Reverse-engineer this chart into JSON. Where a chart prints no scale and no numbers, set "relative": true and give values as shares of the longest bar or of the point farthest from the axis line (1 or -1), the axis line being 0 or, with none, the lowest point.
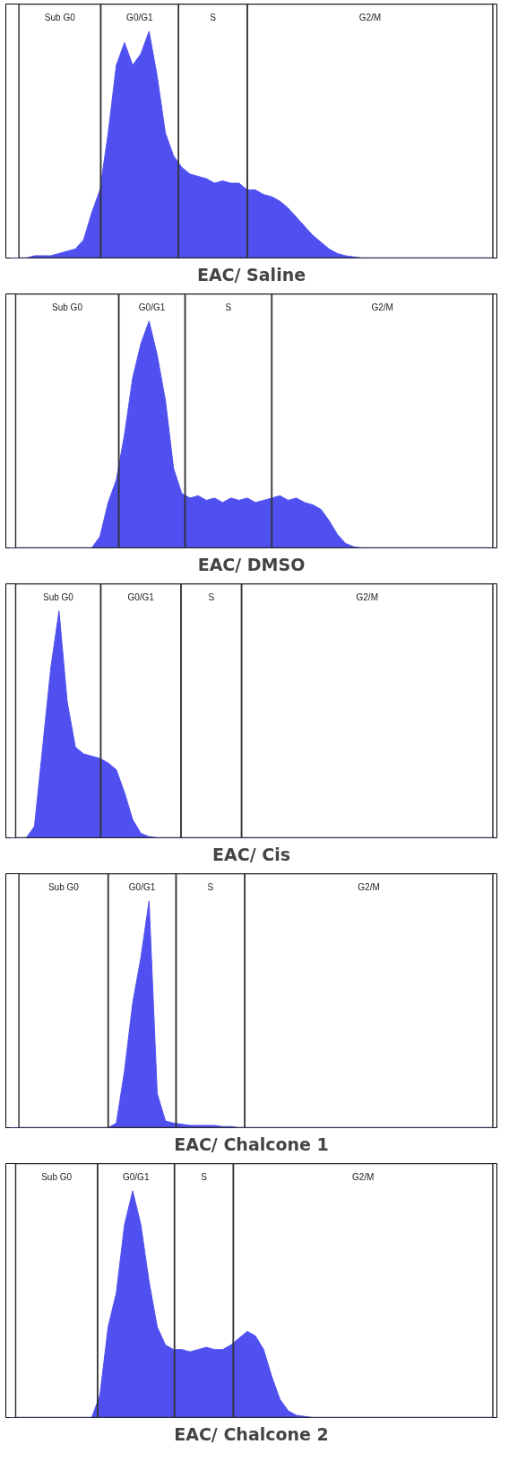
{
  "chart_data": [
    {
      "type": "area",
      "title": "EAC/ Saline",
      "relative": true,
      "tick_labels": false,
      "grid": false,
      "categories": [
        null,
        null,
        null,
        null,
        null,
        null,
        null,
        null,
        null,
        null,
        null,
        null,
        null,
        null,
        null,
        null,
        null,
        null,
        null,
        null,
        null,
        null,
        null,
        null,
        null,
        null,
        null,
        null,
        null,
        null,
        null,
        null,
        null,
        null,
        null,
        null,
        null,
        null,
        null,
        null,
        null,
        null,
        null,
        null,
        null,
        null,
        null,
        null,
        null,
        null,
        null,
        null,
        null,
        null,
        null,
        null,
        null,
        null,
        null,
        null
      ],
      "series": [
        {
          "color": "#5050f0",
          "values": [
            0,
            0,
            0,
            0.01,
            0.01,
            0.01,
            0.02,
            0.03,
            0.04,
            0.08,
            0.2,
            0.3,
            0.55,
            0.85,
            0.95,
            0.85,
            0.9,
            1,
            0.8,
            0.55,
            0.45,
            0.4,
            0.37,
            0.36,
            0.35,
            0.33,
            0.34,
            0.33,
            0.33,
            0.3,
            0.3,
            0.28,
            0.27,
            0.25,
            0.22,
            0.18,
            0.14,
            0.1,
            0.07,
            0.04,
            0.02,
            0.01,
            0.005,
            0,
            0,
            0,
            0,
            0,
            0,
            0,
            0,
            0,
            0,
            0,
            0,
            0,
            0,
            0,
            0,
            0
          ]
        }
      ],
      "annotations": [
        "Sub G0",
        "G0/G1",
        "S",
        "G2/M"
      ]
    },
    {
      "type": "area",
      "title": "EAC/ DMSO",
      "relative": true,
      "tick_labels": false,
      "grid": false,
      "categories": [
        null,
        null,
        null,
        null,
        null,
        null,
        null,
        null,
        null,
        null,
        null,
        null,
        null,
        null,
        null,
        null,
        null,
        null,
        null,
        null,
        null,
        null,
        null,
        null,
        null,
        null,
        null,
        null,
        null,
        null,
        null,
        null,
        null,
        null,
        null,
        null,
        null,
        null,
        null,
        null,
        null,
        null,
        null,
        null,
        null,
        null,
        null,
        null,
        null,
        null,
        null,
        null,
        null,
        null,
        null,
        null,
        null,
        null,
        null,
        null
      ],
      "series": [
        {
          "color": "#5050f0",
          "values": [
            0,
            0,
            0,
            0,
            0,
            0,
            0,
            0,
            0,
            0,
            0,
            0.05,
            0.2,
            0.3,
            0.5,
            0.75,
            0.9,
            1,
            0.85,
            0.65,
            0.35,
            0.24,
            0.22,
            0.23,
            0.21,
            0.22,
            0.2,
            0.22,
            0.21,
            0.22,
            0.2,
            0.21,
            0.22,
            0.23,
            0.21,
            0.22,
            0.2,
            0.19,
            0.17,
            0.12,
            0.06,
            0.02,
            0.005,
            0,
            0,
            0,
            0,
            0,
            0,
            0,
            0,
            0,
            0,
            0,
            0,
            0,
            0,
            0,
            0,
            0
          ]
        }
      ],
      "annotations": [
        "Sub G0",
        "G0/G1",
        "S",
        "G2/M"
      ]
    },
    {
      "type": "area",
      "title": "EAC/ Cis",
      "relative": true,
      "tick_labels": false,
      "grid": false,
      "categories": [
        null,
        null,
        null,
        null,
        null,
        null,
        null,
        null,
        null,
        null,
        null,
        null,
        null,
        null,
        null,
        null,
        null,
        null,
        null,
        null,
        null,
        null,
        null,
        null,
        null,
        null,
        null,
        null,
        null,
        null,
        null,
        null,
        null,
        null,
        null,
        null,
        null,
        null,
        null,
        null,
        null,
        null,
        null,
        null,
        null,
        null,
        null,
        null,
        null,
        null,
        null,
        null,
        null,
        null,
        null,
        null,
        null,
        null,
        null,
        null
      ],
      "series": [
        {
          "color": "#5050f0",
          "values": [
            0,
            0,
            0,
            0.05,
            0.4,
            0.75,
            1,
            0.6,
            0.4,
            0.37,
            0.36,
            0.35,
            0.33,
            0.3,
            0.2,
            0.08,
            0.02,
            0.005,
            0,
            0,
            0,
            0,
            0,
            0,
            0,
            0,
            0,
            0,
            0,
            0,
            0,
            0,
            0,
            0,
            0,
            0,
            0,
            0,
            0,
            0,
            0,
            0,
            0,
            0,
            0,
            0,
            0,
            0,
            0,
            0,
            0,
            0,
            0,
            0,
            0,
            0,
            0,
            0,
            0,
            0
          ]
        }
      ],
      "annotations": [
        "Sub G0",
        "G0/G1",
        "S",
        "G2/M"
      ]
    },
    {
      "type": "area",
      "title": "EAC/ Chalcone 1",
      "relative": true,
      "tick_labels": false,
      "grid": false,
      "categories": [
        null,
        null,
        null,
        null,
        null,
        null,
        null,
        null,
        null,
        null,
        null,
        null,
        null,
        null,
        null,
        null,
        null,
        null,
        null,
        null,
        null,
        null,
        null,
        null,
        null,
        null,
        null,
        null,
        null,
        null,
        null,
        null,
        null,
        null,
        null,
        null,
        null,
        null,
        null,
        null,
        null,
        null,
        null,
        null,
        null,
        null,
        null,
        null,
        null,
        null,
        null,
        null,
        null,
        null,
        null,
        null,
        null,
        null,
        null,
        null
      ],
      "series": [
        {
          "color": "#5050f0",
          "values": [
            0,
            0,
            0,
            0,
            0,
            0,
            0,
            0,
            0,
            0,
            0,
            0,
            0,
            0.02,
            0.25,
            0.55,
            0.75,
            1,
            0.15,
            0.03,
            0.02,
            0.015,
            0.01,
            0.01,
            0.01,
            0.01,
            0.005,
            0.005,
            0,
            0,
            0,
            0,
            0,
            0,
            0,
            0,
            0,
            0,
            0,
            0,
            0,
            0,
            0,
            0,
            0,
            0,
            0,
            0,
            0,
            0,
            0,
            0,
            0,
            0,
            0,
            0,
            0,
            0,
            0,
            0
          ]
        }
      ],
      "annotations": [
        "Sub G0",
        "G0/G1",
        "S",
        "G2/M"
      ]
    },
    {
      "type": "area",
      "title": "EAC/ Chalcone 2",
      "relative": true,
      "tick_labels": false,
      "grid": false,
      "categories": [
        null,
        null,
        null,
        null,
        null,
        null,
        null,
        null,
        null,
        null,
        null,
        null,
        null,
        null,
        null,
        null,
        null,
        null,
        null,
        null,
        null,
        null,
        null,
        null,
        null,
        null,
        null,
        null,
        null,
        null,
        null,
        null,
        null,
        null,
        null,
        null,
        null,
        null,
        null,
        null,
        null,
        null,
        null,
        null,
        null,
        null,
        null,
        null,
        null,
        null,
        null,
        null,
        null,
        null,
        null,
        null,
        null,
        null,
        null,
        null
      ],
      "series": [
        {
          "color": "#5050f0",
          "values": [
            0,
            0,
            0,
            0,
            0,
            0,
            0,
            0,
            0,
            0,
            0,
            0.1,
            0.4,
            0.55,
            0.85,
            1,
            0.85,
            0.6,
            0.4,
            0.32,
            0.3,
            0.3,
            0.29,
            0.3,
            0.31,
            0.3,
            0.3,
            0.32,
            0.35,
            0.38,
            0.36,
            0.3,
            0.18,
            0.08,
            0.03,
            0.01,
            0.005,
            0,
            0,
            0,
            0,
            0,
            0,
            0,
            0,
            0,
            0,
            0,
            0,
            0,
            0,
            0,
            0,
            0,
            0,
            0,
            0,
            0,
            0,
            0
          ]
        }
      ],
      "annotations": [
        "Sub G0",
        "G0/G1",
        "S",
        "G2/M"
      ]
    }
  ]
}
